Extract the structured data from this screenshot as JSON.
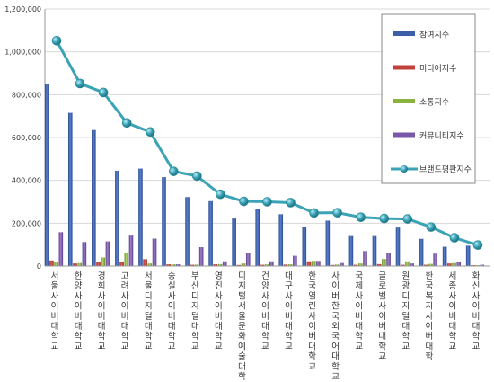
{
  "chart_data": {
    "type": "bar",
    "y_ticks": [
      "0",
      "200,000",
      "400,000",
      "600,000",
      "800,000",
      "1,000,000",
      "1,200,000"
    ],
    "ylim": [
      0,
      1200000
    ],
    "grid": true,
    "legend_position": "right",
    "categories": [
      "서울사이버대학교",
      "한양사이버대학교",
      "경희사이버대학교",
      "고려사이버대학교",
      "서울디지털대학교",
      "숭실사이버대학교",
      "부산디지털대학교",
      "영진사이버대학교",
      "디지털서울문화예술대학교",
      "건양사이버대학교",
      "대구사이버대학교",
      "한국열린사이버대학교",
      "사이버한국외국어대학교",
      "국제사이버대학교",
      "글로벌사이버대학교",
      "원광디지털대학교",
      "한국복지사이버대학",
      "세종사이버대학교",
      "화신사이버대학교"
    ],
    "series": [
      {
        "name": "참여지수",
        "kind": "bar",
        "color": "#3a5ea8",
        "values": [
          850000,
          715000,
          635000,
          445000,
          455000,
          415000,
          322000,
          303000,
          222000,
          268000,
          242000,
          182000,
          212000,
          140000,
          140000,
          180000,
          127000,
          90000,
          95000
        ]
      },
      {
        "name": "미디어지수",
        "kind": "bar",
        "color": "#c0403a",
        "values": [
          26000,
          12000,
          18000,
          18000,
          32000,
          8000,
          6000,
          8000,
          5000,
          6000,
          7000,
          22000,
          5000,
          6000,
          9000,
          6000,
          6000,
          12000,
          4000
        ]
      },
      {
        "name": "소통지수",
        "kind": "bar",
        "color": "#8ab23e",
        "values": [
          19000,
          14000,
          40000,
          62000,
          12000,
          8000,
          7000,
          9000,
          12000,
          8000,
          8000,
          24000,
          7000,
          12000,
          33000,
          22000,
          10000,
          14000,
          4000
        ]
      },
      {
        "name": "커뮤니티지수",
        "kind": "bar",
        "color": "#7a58a8",
        "values": [
          158000,
          112000,
          115000,
          142000,
          128000,
          8000,
          88000,
          22000,
          62000,
          22000,
          48000,
          24000,
          14000,
          70000,
          62000,
          12000,
          58000,
          18000,
          6000
        ]
      },
      {
        "name": "브랜드평판지수",
        "kind": "line",
        "color": "#3aa3b5",
        "values": [
          1052000,
          852000,
          810000,
          668000,
          626000,
          442000,
          420000,
          335000,
          302000,
          300000,
          296000,
          248000,
          249000,
          228000,
          222000,
          220000,
          182000,
          132000,
          98000
        ]
      }
    ]
  }
}
